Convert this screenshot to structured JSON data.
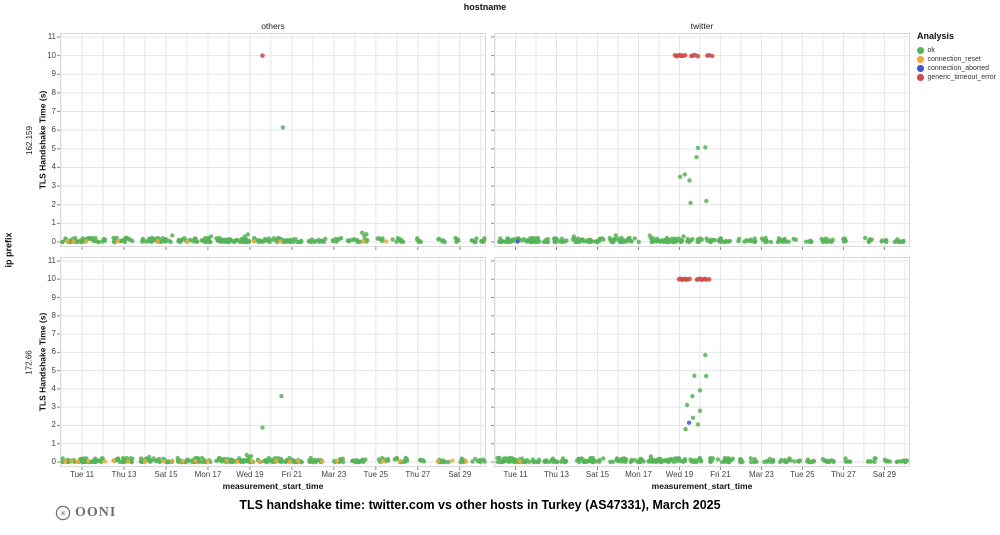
{
  "figure": {
    "facet_column_variable": "hostname",
    "title": "TLS handshake time: twitter.com vs other hosts in Turkey (AS47331), March 2025",
    "logo_text": "OONI"
  },
  "legend": {
    "title": "Analysis",
    "items": [
      {
        "label": "ok",
        "color": "#57b357"
      },
      {
        "label": "connection_reset",
        "color": "#f5a93c"
      },
      {
        "label": "connection_aborted",
        "color": "#4353cb"
      },
      {
        "label": "generic_timeout_error",
        "color": "#cd4c48"
      }
    ]
  },
  "chart_data": {
    "type": "scatter",
    "facet_col_var": "hostname",
    "facet_row_var": "ip prefix",
    "columns": [
      "others",
      "twitter"
    ],
    "rows": [
      "162.159",
      "172.66"
    ],
    "xlabel": "measurement_start_time",
    "ylabel": "TLS Handshake Time (s)",
    "ylim": [
      0,
      11
    ],
    "yticks": [
      0,
      1,
      2,
      3,
      4,
      5,
      6,
      7,
      8,
      9,
      10,
      11
    ],
    "xdomain": [
      9.95,
      30.25
    ],
    "xticks": [
      {
        "day": 11,
        "label": "Tue 11"
      },
      {
        "day": 13,
        "label": "Thu 13"
      },
      {
        "day": 15,
        "label": "Sat 15"
      },
      {
        "day": 17,
        "label": "Mon 17"
      },
      {
        "day": 19,
        "label": "Wed 19"
      },
      {
        "day": 21,
        "label": "Fri 21"
      },
      {
        "day": 23,
        "label": "Mar 23"
      },
      {
        "day": 25,
        "label": "Tue 25"
      },
      {
        "day": 27,
        "label": "Thu 27"
      },
      {
        "day": 29,
        "label": "Sat 29"
      }
    ],
    "grid": true,
    "legend_position": "right",
    "jitter_seed": 7,
    "baseline_jitter_max_s": 0.22,
    "panels": [
      {
        "col": "others",
        "row": "162.159",
        "baseline_ok_runs": [
          [
            10.05,
            12.15,
            48
          ],
          [
            12.35,
            13.45,
            22
          ],
          [
            13.75,
            15.25,
            30
          ],
          [
            15.5,
            17.15,
            32
          ],
          [
            17.35,
            19.1,
            42
          ],
          [
            19.2,
            21.45,
            48
          ],
          [
            21.75,
            22.65,
            14
          ],
          [
            22.95,
            23.35,
            7
          ],
          [
            23.65,
            24.65,
            13
          ],
          [
            24.95,
            25.35,
            6
          ],
          [
            25.75,
            26.35,
            9
          ],
          [
            26.85,
            27.15,
            5
          ],
          [
            27.95,
            28.35,
            6
          ],
          [
            28.75,
            29.15,
            5
          ],
          [
            29.55,
            29.85,
            5
          ],
          [
            30.0,
            30.25,
            5
          ]
        ],
        "points": {
          "ok": [
            [
              20.57,
              6.15
            ],
            [
              15.3,
              0.35
            ],
            [
              17.15,
              0.3
            ],
            [
              18.75,
              0.3
            ],
            [
              18.9,
              0.4
            ],
            [
              24.35,
              0.5
            ],
            [
              24.45,
              0.32
            ],
            [
              24.55,
              0.42
            ]
          ],
          "connection_reset": [
            [
              10.3,
              0.05
            ],
            [
              10.6,
              0.02
            ],
            [
              11.2,
              0.04
            ],
            [
              12.7,
              0.03
            ],
            [
              14.6,
              0.05
            ],
            [
              16.0,
              0.02
            ],
            [
              19.2,
              0.04
            ],
            [
              20.45,
              0.03
            ],
            [
              24.4,
              0.05
            ],
            [
              25.5,
              0.02
            ]
          ],
          "connection_aborted": [],
          "generic_timeout_error": [
            [
              19.6,
              10.0
            ]
          ]
        }
      },
      {
        "col": "twitter",
        "row": "162.159",
        "baseline_ok_runs": [
          [
            10.1,
            12.2,
            46
          ],
          [
            12.4,
            13.5,
            20
          ],
          [
            13.8,
            15.3,
            28
          ],
          [
            15.55,
            17.2,
            30
          ],
          [
            17.4,
            19.2,
            42
          ],
          [
            19.3,
            20.1,
            12
          ],
          [
            20.3,
            21.5,
            20
          ],
          [
            21.8,
            22.7,
            13
          ],
          [
            23.0,
            23.5,
            8
          ],
          [
            23.8,
            24.8,
            13
          ],
          [
            25.1,
            25.5,
            6
          ],
          [
            25.8,
            26.5,
            10
          ],
          [
            26.9,
            27.2,
            5
          ],
          [
            28.0,
            28.4,
            6
          ],
          [
            28.8,
            29.2,
            5
          ],
          [
            29.5,
            30.25,
            9
          ]
        ],
        "points": {
          "ok": [
            [
              19.03,
              3.5
            ],
            [
              19.26,
              3.62
            ],
            [
              19.49,
              3.3
            ],
            [
              19.83,
              4.55
            ],
            [
              19.9,
              5.05
            ],
            [
              20.26,
              5.08
            ],
            [
              19.54,
              2.1
            ],
            [
              20.31,
              2.2
            ],
            [
              13.85,
              0.3
            ],
            [
              15.9,
              0.35
            ],
            [
              17.55,
              0.35
            ],
            [
              19.2,
              0.3
            ]
          ],
          "connection_reset": [],
          "connection_aborted": [
            [
              11.1,
              0.03
            ]
          ],
          "generic_timeout_error": [
            [
              18.78,
              10.02
            ],
            [
              18.86,
              9.97
            ],
            [
              18.94,
              10.0
            ],
            [
              19.02,
              10.03
            ],
            [
              19.1,
              9.98
            ],
            [
              19.18,
              10.0
            ],
            [
              19.28,
              10.02
            ],
            [
              19.58,
              9.98
            ],
            [
              19.66,
              10.0
            ],
            [
              19.76,
              10.03
            ],
            [
              19.9,
              9.97
            ],
            [
              20.36,
              10.0
            ],
            [
              20.46,
              10.02
            ],
            [
              20.6,
              9.98
            ]
          ]
        }
      },
      {
        "col": "others",
        "row": "172.66",
        "baseline_ok_runs": [
          [
            10.05,
            12.2,
            50
          ],
          [
            12.4,
            13.5,
            22
          ],
          [
            13.8,
            15.3,
            32
          ],
          [
            15.5,
            17.2,
            34
          ],
          [
            17.4,
            19.2,
            42
          ],
          [
            19.3,
            21.5,
            44
          ],
          [
            21.8,
            22.7,
            15
          ],
          [
            23.0,
            23.5,
            8
          ],
          [
            23.8,
            24.8,
            15
          ],
          [
            25.1,
            25.6,
            7
          ],
          [
            25.9,
            26.5,
            11
          ],
          [
            27.0,
            27.3,
            5
          ],
          [
            28.0,
            28.5,
            7
          ],
          [
            28.8,
            29.3,
            6
          ],
          [
            29.6,
            30.25,
            9
          ]
        ],
        "points": {
          "ok": [
            [
              19.6,
              1.88
            ],
            [
              20.5,
              3.6
            ],
            [
              18.85,
              0.38
            ],
            [
              18.95,
              0.25
            ],
            [
              19.05,
              0.32
            ],
            [
              14.2,
              0.28
            ]
          ],
          "connection_reset": [
            [
              10.2,
              0.04
            ],
            [
              10.5,
              0.07
            ],
            [
              10.8,
              0.03
            ],
            [
              11.3,
              0.06
            ],
            [
              12.1,
              0.04
            ],
            [
              12.5,
              0.08
            ],
            [
              13.2,
              0.03
            ],
            [
              14.0,
              0.06
            ],
            [
              14.9,
              0.04
            ],
            [
              15.3,
              0.07
            ],
            [
              15.8,
              0.03
            ],
            [
              16.4,
              0.06
            ],
            [
              17.0,
              0.04
            ],
            [
              17.9,
              0.07
            ],
            [
              18.4,
              0.03
            ],
            [
              19.1,
              0.06
            ],
            [
              19.45,
              0.04
            ],
            [
              20.25,
              0.07
            ],
            [
              20.9,
              0.03
            ],
            [
              21.3,
              0.06
            ],
            [
              22.45,
              0.04
            ],
            [
              23.15,
              0.07
            ],
            [
              25.35,
              0.03
            ],
            [
              26.15,
              0.06
            ],
            [
              27.95,
              0.04
            ],
            [
              28.65,
              0.07
            ],
            [
              29.3,
              0.03
            ]
          ],
          "connection_aborted": [],
          "generic_timeout_error": []
        }
      },
      {
        "col": "twitter",
        "row": "172.66",
        "baseline_ok_runs": [
          [
            10.1,
            12.2,
            48
          ],
          [
            12.4,
            13.6,
            22
          ],
          [
            13.9,
            15.4,
            28
          ],
          [
            15.6,
            17.3,
            32
          ],
          [
            17.5,
            19.3,
            44
          ],
          [
            19.4,
            20.2,
            12
          ],
          [
            20.4,
            21.6,
            22
          ],
          [
            21.9,
            22.8,
            13
          ],
          [
            23.1,
            23.6,
            8
          ],
          [
            23.9,
            24.9,
            13
          ],
          [
            25.2,
            25.7,
            7
          ],
          [
            26.0,
            26.6,
            11
          ],
          [
            27.1,
            27.4,
            5
          ],
          [
            28.1,
            28.6,
            7
          ],
          [
            28.9,
            29.3,
            6
          ],
          [
            29.6,
            30.25,
            9
          ]
        ],
        "points": {
          "ok": [
            [
              20.26,
              5.85
            ],
            [
              19.73,
              4.72
            ],
            [
              20.3,
              4.7
            ],
            [
              20.0,
              3.92
            ],
            [
              19.63,
              3.6
            ],
            [
              19.37,
              3.12
            ],
            [
              20.0,
              2.8
            ],
            [
              19.66,
              2.42
            ],
            [
              19.9,
              2.05
            ],
            [
              19.3,
              1.8
            ],
            [
              17.6,
              0.3
            ]
          ],
          "connection_reset": [
            [
              11.2,
              0.04
            ]
          ],
          "connection_aborted": [
            [
              19.47,
              2.15
            ]
          ],
          "generic_timeout_error": [
            [
              18.98,
              10.0
            ],
            [
              19.05,
              10.03
            ],
            [
              19.12,
              9.97
            ],
            [
              19.19,
              10.0
            ],
            [
              19.26,
              10.02
            ],
            [
              19.33,
              9.98
            ],
            [
              19.4,
              10.0
            ],
            [
              19.5,
              10.02
            ],
            [
              19.85,
              9.98
            ],
            [
              19.92,
              10.0
            ],
            [
              20.0,
              10.03
            ],
            [
              20.08,
              9.97
            ],
            [
              20.16,
              10.0
            ],
            [
              20.24,
              10.02
            ],
            [
              20.32,
              9.98
            ],
            [
              20.45,
              10.0
            ]
          ]
        }
      }
    ]
  }
}
